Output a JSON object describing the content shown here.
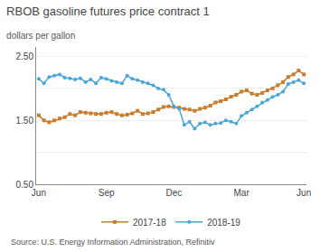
{
  "chart_data": {
    "type": "line",
    "title": "RBOB gasoline futures price contract 1",
    "subtitle": "dollars per gallon",
    "source": "Source: U.S. Energy Information Administration, Refinitiv",
    "series": [
      {
        "name": "2017-18",
        "color": "#c87d2f",
        "marker": "square",
        "x": [
          0,
          1,
          2,
          3,
          4,
          5,
          6,
          7,
          8,
          9,
          10,
          11,
          12,
          13,
          14,
          15,
          16,
          17,
          18,
          19,
          20,
          21,
          22,
          23,
          24,
          25,
          26,
          27,
          28,
          29,
          30,
          31,
          32,
          33,
          34,
          35,
          36,
          37,
          38,
          39,
          40,
          41,
          42,
          43,
          44,
          45,
          46,
          47,
          48,
          49,
          50,
          51
        ],
        "values": [
          1.58,
          1.5,
          1.47,
          1.5,
          1.53,
          1.55,
          1.6,
          1.58,
          1.63,
          1.62,
          1.61,
          1.6,
          1.6,
          1.62,
          1.63,
          1.6,
          1.58,
          1.59,
          1.61,
          1.65,
          1.6,
          1.61,
          1.63,
          1.67,
          1.71,
          1.72,
          1.71,
          1.7,
          1.68,
          1.67,
          1.65,
          1.68,
          1.7,
          1.73,
          1.78,
          1.8,
          1.83,
          1.87,
          1.9,
          1.95,
          1.97,
          1.92,
          1.9,
          1.93,
          1.97,
          2.0,
          2.05,
          2.1,
          2.18,
          2.22,
          2.28,
          2.22
        ]
      },
      {
        "name": "2018-19",
        "color": "#4aa5d8",
        "marker": "circle",
        "x": [
          0,
          1,
          2,
          3,
          4,
          5,
          6,
          7,
          8,
          9,
          10,
          11,
          12,
          13,
          14,
          15,
          16,
          17,
          18,
          19,
          20,
          21,
          22,
          23,
          24,
          25,
          26,
          27,
          28,
          29,
          30,
          31,
          32,
          33,
          34,
          35,
          36,
          37,
          38,
          39,
          40,
          41,
          42,
          43,
          44,
          45,
          46,
          47,
          48,
          49,
          50,
          51
        ],
        "values": [
          2.15,
          2.08,
          2.18,
          2.2,
          2.22,
          2.17,
          2.16,
          2.14,
          2.16,
          2.1,
          2.14,
          2.08,
          2.17,
          2.15,
          2.12,
          2.1,
          2.08,
          2.2,
          2.15,
          2.13,
          2.1,
          2.08,
          2.05,
          2.0,
          1.98,
          1.9,
          1.72,
          1.68,
          1.43,
          1.48,
          1.37,
          1.45,
          1.47,
          1.43,
          1.45,
          1.46,
          1.5,
          1.48,
          1.45,
          1.57,
          1.62,
          1.67,
          1.72,
          1.78,
          1.82,
          1.87,
          1.9,
          1.95,
          2.07,
          2.1,
          2.13,
          2.08
        ]
      }
    ],
    "xlim": [
      -0.5,
      51.5
    ],
    "xticks": [
      {
        "value": 0,
        "label": "Jun"
      },
      {
        "value": 13,
        "label": "Sep"
      },
      {
        "value": 26,
        "label": "Dec"
      },
      {
        "value": 39,
        "label": "Mar"
      },
      {
        "value": 51,
        "label": "Jun"
      }
    ],
    "ylim": [
      0.5,
      2.65
    ],
    "yticks": [
      {
        "value": 0.5,
        "label": "0.50"
      },
      {
        "value": 1.0,
        "label": ""
      },
      {
        "value": 1.5,
        "label": "1.50"
      },
      {
        "value": 2.0,
        "label": ""
      },
      {
        "value": 2.5,
        "label": "2.50"
      }
    ],
    "grid": true,
    "legend": "bottom"
  }
}
